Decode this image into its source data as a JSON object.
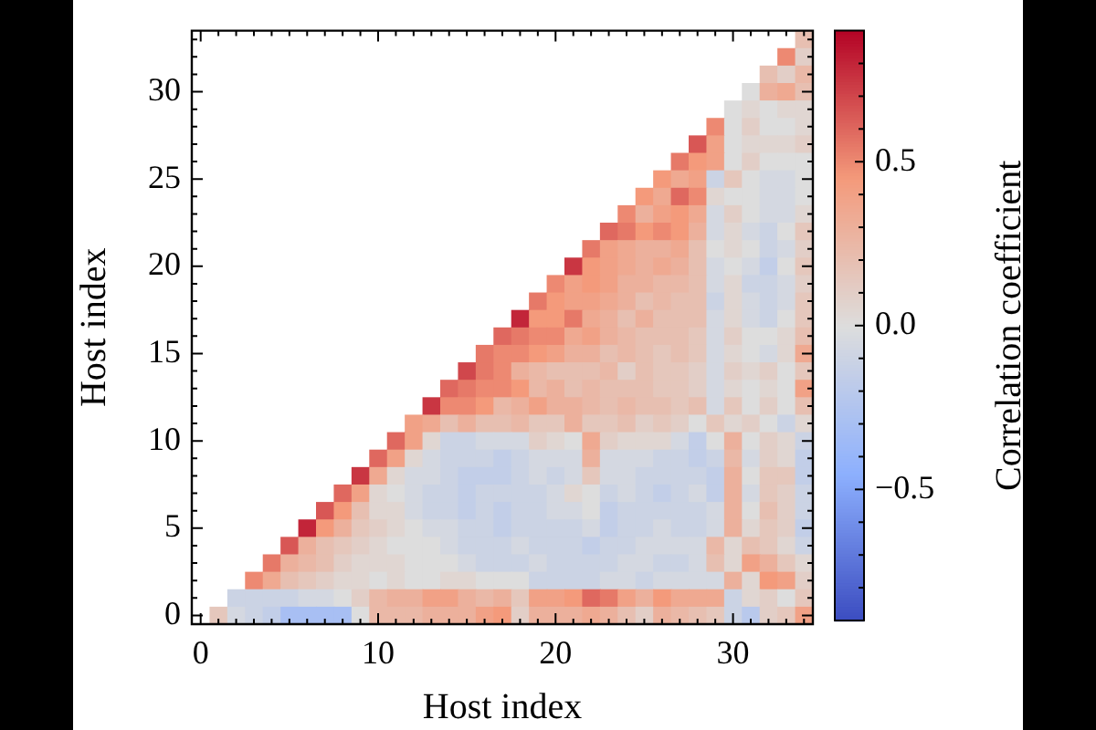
{
  "chart_data": {
    "type": "heatmap",
    "xlabel": "Host index",
    "ylabel": "Host index",
    "clabel": "Correlation coefficient",
    "categories": [
      "0",
      null,
      null,
      null,
      null,
      null,
      null,
      null,
      null,
      null,
      "10",
      null,
      null,
      null,
      null,
      null,
      null,
      null,
      null,
      null,
      "20",
      null,
      null,
      null,
      null,
      null,
      null,
      null,
      null,
      null,
      "30",
      null,
      null,
      null,
      null
    ],
    "y_categories": [
      null,
      null,
      null,
      "30",
      null,
      null,
      null,
      null,
      "25",
      null,
      null,
      null,
      null,
      "20",
      null,
      null,
      null,
      null,
      "15",
      null,
      null,
      null,
      null,
      "10",
      null,
      null,
      null,
      null,
      "5",
      null,
      null,
      null,
      null,
      "0"
    ],
    "cells": [
      [
        null,
        null,
        null,
        null,
        null,
        null,
        null,
        null,
        null,
        null,
        null,
        null,
        null,
        null,
        null,
        null,
        null,
        null,
        null,
        null,
        null,
        null,
        null,
        null,
        null,
        null,
        null,
        null,
        null,
        null,
        null,
        null,
        null,
        null,
        0.2
      ],
      [
        null,
        null,
        null,
        null,
        null,
        null,
        null,
        null,
        null,
        null,
        null,
        null,
        null,
        null,
        null,
        null,
        null,
        null,
        null,
        null,
        null,
        null,
        null,
        null,
        null,
        null,
        null,
        null,
        null,
        null,
        null,
        null,
        null,
        0.5,
        0.1
      ],
      [
        null,
        null,
        null,
        null,
        null,
        null,
        null,
        null,
        null,
        null,
        null,
        null,
        null,
        null,
        null,
        null,
        null,
        null,
        null,
        null,
        null,
        null,
        null,
        null,
        null,
        null,
        null,
        null,
        null,
        null,
        null,
        null,
        0.2,
        0.1,
        0.25
      ],
      [
        null,
        null,
        null,
        null,
        null,
        null,
        null,
        null,
        null,
        null,
        null,
        null,
        null,
        null,
        null,
        null,
        null,
        null,
        null,
        null,
        null,
        null,
        null,
        null,
        null,
        null,
        null,
        null,
        null,
        null,
        null,
        0,
        0.3,
        0.35,
        0.2
      ],
      [
        null,
        null,
        null,
        null,
        null,
        null,
        null,
        null,
        null,
        null,
        null,
        null,
        null,
        null,
        null,
        null,
        null,
        null,
        null,
        null,
        null,
        null,
        null,
        null,
        null,
        null,
        null,
        null,
        null,
        null,
        0,
        0.05,
        0,
        0.05,
        0.05
      ],
      [
        null,
        null,
        null,
        null,
        null,
        null,
        null,
        null,
        null,
        null,
        null,
        null,
        null,
        null,
        null,
        null,
        null,
        null,
        null,
        null,
        null,
        null,
        null,
        null,
        null,
        null,
        null,
        null,
        null,
        0.5,
        0,
        0.1,
        0,
        0,
        0.05
      ],
      [
        null,
        null,
        null,
        null,
        null,
        null,
        null,
        null,
        null,
        null,
        null,
        null,
        null,
        null,
        null,
        null,
        null,
        null,
        null,
        null,
        null,
        null,
        null,
        null,
        null,
        null,
        null,
        null,
        0.65,
        0.4,
        0,
        0.05,
        0.05,
        0.05,
        0.1
      ],
      [
        null,
        null,
        null,
        null,
        null,
        null,
        null,
        null,
        null,
        null,
        null,
        null,
        null,
        null,
        null,
        null,
        null,
        null,
        null,
        null,
        null,
        null,
        null,
        null,
        null,
        null,
        null,
        0.55,
        0.45,
        0.4,
        0,
        0.1,
        0,
        0,
        0
      ],
      [
        null,
        null,
        null,
        null,
        null,
        null,
        null,
        null,
        null,
        null,
        null,
        null,
        null,
        null,
        null,
        null,
        null,
        null,
        null,
        null,
        null,
        null,
        null,
        null,
        null,
        null,
        0.45,
        0.35,
        0.4,
        -0.1,
        0.15,
        0,
        -0.05,
        -0.05,
        0
      ],
      [
        null,
        null,
        null,
        null,
        null,
        null,
        null,
        null,
        null,
        null,
        null,
        null,
        null,
        null,
        null,
        null,
        null,
        null,
        null,
        null,
        null,
        null,
        null,
        null,
        null,
        0.45,
        0.35,
        0.6,
        0.5,
        0.05,
        0,
        0,
        -0.05,
        -0.05,
        0
      ],
      [
        null,
        null,
        null,
        null,
        null,
        null,
        null,
        null,
        null,
        null,
        null,
        null,
        null,
        null,
        null,
        null,
        null,
        null,
        null,
        null,
        null,
        null,
        null,
        null,
        0.5,
        0.3,
        0.4,
        0.45,
        0.35,
        -0.05,
        0.1,
        0,
        -0.05,
        -0.05,
        0.05
      ],
      [
        null,
        null,
        null,
        null,
        null,
        null,
        null,
        null,
        null,
        null,
        null,
        null,
        null,
        null,
        null,
        null,
        null,
        null,
        null,
        null,
        null,
        null,
        null,
        0.6,
        0.55,
        0.45,
        0.5,
        0.45,
        0.3,
        -0.05,
        0.05,
        -0.05,
        -0.1,
        0,
        0.15
      ],
      [
        null,
        null,
        null,
        null,
        null,
        null,
        null,
        null,
        null,
        null,
        null,
        null,
        null,
        null,
        null,
        null,
        null,
        null,
        null,
        null,
        null,
        null,
        0.55,
        0.4,
        0.35,
        0.3,
        0.3,
        0.35,
        0.2,
        0,
        0.05,
        0,
        -0.1,
        -0.05,
        0.1
      ],
      [
        null,
        null,
        null,
        null,
        null,
        null,
        null,
        null,
        null,
        null,
        null,
        null,
        null,
        null,
        null,
        null,
        null,
        null,
        null,
        null,
        null,
        0.75,
        0.45,
        0.4,
        0.35,
        0.3,
        0.35,
        0.3,
        0.2,
        -0.05,
        0,
        -0.05,
        -0.15,
        0,
        0.15
      ],
      [
        null,
        null,
        null,
        null,
        null,
        null,
        null,
        null,
        null,
        null,
        null,
        null,
        null,
        null,
        null,
        null,
        null,
        null,
        null,
        null,
        0.5,
        0.4,
        0.45,
        0.4,
        0.3,
        0.3,
        0.25,
        0.25,
        0.2,
        -0.05,
        0.05,
        -0.1,
        -0.1,
        -0.05,
        0.1
      ],
      [
        null,
        null,
        null,
        null,
        null,
        null,
        null,
        null,
        null,
        null,
        null,
        null,
        null,
        null,
        null,
        null,
        null,
        null,
        null,
        0.55,
        0.45,
        0.4,
        0.4,
        0.35,
        0.3,
        0.2,
        0.25,
        0.2,
        0.2,
        -0.1,
        0.05,
        -0.05,
        -0.1,
        -0.05,
        0.15
      ],
      [
        null,
        null,
        null,
        null,
        null,
        null,
        null,
        null,
        null,
        null,
        null,
        null,
        null,
        null,
        null,
        null,
        null,
        null,
        0.8,
        0.45,
        0.45,
        0.55,
        0.35,
        0.3,
        0.2,
        0.3,
        0.2,
        0.2,
        0.2,
        -0.05,
        0.05,
        -0.05,
        -0.1,
        0,
        0.15
      ],
      [
        null,
        null,
        null,
        null,
        null,
        null,
        null,
        null,
        null,
        null,
        null,
        null,
        null,
        null,
        null,
        null,
        null,
        0.6,
        0.55,
        0.5,
        0.5,
        0.35,
        0.4,
        0.3,
        0.25,
        0.2,
        0.2,
        0.2,
        0.15,
        -0.05,
        0.1,
        0,
        0,
        0.05,
        0.2
      ],
      [
        null,
        null,
        null,
        null,
        null,
        null,
        null,
        null,
        null,
        null,
        null,
        null,
        null,
        null,
        null,
        null,
        0.55,
        0.5,
        0.5,
        0.45,
        0.4,
        0.3,
        0.3,
        0.2,
        0.25,
        0.2,
        0.15,
        0.2,
        0.15,
        -0.05,
        0.05,
        0,
        -0.05,
        0.05,
        0.35
      ],
      [
        null,
        null,
        null,
        null,
        null,
        null,
        null,
        null,
        null,
        null,
        null,
        null,
        null,
        null,
        null,
        0.7,
        0.55,
        0.5,
        0.3,
        0.25,
        0.2,
        0.2,
        0.2,
        0.25,
        0.1,
        0.2,
        0.15,
        0.15,
        0.1,
        -0.05,
        0.1,
        0.05,
        0.1,
        0,
        0.15
      ],
      [
        null,
        null,
        null,
        null,
        null,
        null,
        null,
        null,
        null,
        null,
        null,
        null,
        null,
        null,
        0.6,
        0.55,
        0.5,
        0.5,
        0.45,
        0.25,
        0.3,
        0.2,
        0.25,
        0.2,
        0.2,
        0.2,
        0.15,
        0.15,
        0.1,
        -0.05,
        0.05,
        0,
        0.05,
        0,
        0.4
      ],
      [
        null,
        null,
        null,
        null,
        null,
        null,
        null,
        null,
        null,
        null,
        null,
        null,
        null,
        0.75,
        0.5,
        0.5,
        0.45,
        0.25,
        0.3,
        0.4,
        0.3,
        0.3,
        0.25,
        0.2,
        0.25,
        0.2,
        0.2,
        0.15,
        0.2,
        -0.05,
        0.15,
        0,
        0.1,
        0,
        0.2
      ],
      [
        null,
        null,
        null,
        null,
        null,
        null,
        null,
        null,
        null,
        null,
        null,
        null,
        0.4,
        0.35,
        0.2,
        0.3,
        0.2,
        0.2,
        0.25,
        0.15,
        0.15,
        0.3,
        0.15,
        0.15,
        0.2,
        0.1,
        0.15,
        0.1,
        0,
        0.15,
        0.05,
        0.1,
        0,
        -0.1,
        0.05
      ],
      [
        null,
        null,
        null,
        null,
        null,
        null,
        null,
        null,
        null,
        null,
        null,
        0.6,
        0.4,
        0.05,
        -0.1,
        -0.1,
        -0.05,
        -0.05,
        -0.05,
        0.1,
        0.05,
        0,
        0.35,
        0.1,
        0.05,
        0.05,
        0.05,
        -0.05,
        -0.15,
        0,
        0.3,
        0,
        0.1,
        0.05,
        -0.1
      ],
      [
        null,
        null,
        null,
        null,
        null,
        null,
        null,
        null,
        null,
        null,
        0.6,
        0.4,
        0.05,
        -0.05,
        -0.1,
        -0.1,
        -0.1,
        -0.15,
        -0.1,
        -0.05,
        -0.05,
        -0.05,
        0.3,
        -0.05,
        -0.05,
        -0.05,
        -0.1,
        -0.1,
        -0.15,
        -0.1,
        0.25,
        -0.05,
        0.1,
        0.05,
        -0.15
      ],
      [
        null,
        null,
        null,
        null,
        null,
        null,
        null,
        null,
        null,
        0.75,
        0.35,
        0.05,
        -0.05,
        -0.05,
        -0.1,
        -0.15,
        -0.15,
        -0.15,
        -0.1,
        -0.05,
        -0.1,
        -0.05,
        0.15,
        -0.05,
        -0.05,
        -0.1,
        -0.1,
        -0.1,
        -0.1,
        -0.15,
        0.3,
        0,
        0.15,
        0.15,
        -0.15
      ],
      [
        null,
        null,
        null,
        null,
        null,
        null,
        null,
        null,
        0.6,
        0.4,
        0.05,
        0,
        -0.05,
        -0.1,
        -0.1,
        -0.15,
        -0.1,
        -0.1,
        -0.1,
        -0.1,
        -0.05,
        0.05,
        0,
        -0.1,
        -0.05,
        -0.1,
        -0.15,
        -0.1,
        -0.05,
        -0.15,
        0.3,
        -0.05,
        0.15,
        0.1,
        -0.1
      ],
      [
        null,
        null,
        null,
        null,
        null,
        null,
        null,
        0.65,
        0.45,
        0.2,
        0.05,
        0.05,
        -0.05,
        -0.1,
        -0.1,
        -0.15,
        -0.1,
        -0.15,
        -0.1,
        -0.1,
        -0.05,
        -0.05,
        0,
        -0.15,
        -0.1,
        -0.1,
        -0.1,
        -0.1,
        -0.1,
        -0.05,
        0.3,
        0,
        0.2,
        0.1,
        -0.1
      ],
      [
        null,
        null,
        null,
        null,
        null,
        null,
        0.8,
        0.45,
        0.3,
        0.15,
        0.1,
        0.05,
        0,
        -0.05,
        -0.05,
        -0.1,
        -0.1,
        -0.15,
        -0.1,
        -0.1,
        -0.1,
        -0.1,
        -0.05,
        -0.15,
        -0.1,
        -0.1,
        -0.05,
        -0.1,
        -0.1,
        -0.05,
        0.3,
        0.05,
        0.15,
        0.1,
        -0.15
      ],
      [
        null,
        null,
        null,
        null,
        null,
        0.65,
        0.3,
        0.2,
        0.15,
        0.1,
        0.05,
        0,
        0,
        0,
        -0.05,
        -0.1,
        -0.1,
        -0.1,
        -0.05,
        -0.1,
        -0.1,
        -0.1,
        -0.15,
        -0.1,
        -0.1,
        -0.05,
        -0.05,
        -0.05,
        -0.05,
        0.25,
        0.05,
        0.2,
        0.15,
        0.05,
        -0.1
      ],
      [
        null,
        null,
        null,
        null,
        0.55,
        0.3,
        0.25,
        0.2,
        0.1,
        0.05,
        0.05,
        0.05,
        0,
        0,
        0,
        -0.05,
        -0.1,
        -0.1,
        -0.1,
        -0.05,
        -0.1,
        -0.1,
        -0.1,
        -0.1,
        -0.05,
        -0.05,
        -0.1,
        -0.1,
        -0.05,
        0.2,
        0.05,
        0.4,
        0.3,
        0.15,
        0.05
      ],
      [
        null,
        null,
        null,
        0.5,
        0.35,
        0.2,
        0.15,
        0.1,
        0.05,
        0.05,
        0,
        0.05,
        0,
        0,
        0.05,
        0.05,
        0,
        0,
        0,
        -0.1,
        -0.1,
        -0.1,
        -0.1,
        -0.05,
        -0.05,
        -0.1,
        -0.05,
        -0.05,
        -0.05,
        -0.05,
        0.3,
        0.05,
        0.45,
        0.4,
        0.1
      ],
      [
        null,
        null,
        -0.1,
        -0.1,
        -0.1,
        -0.1,
        -0.05,
        -0.05,
        0,
        0.1,
        0.25,
        0.3,
        0.3,
        0.4,
        0.4,
        0.3,
        0.25,
        0.3,
        0.15,
        0.4,
        0.4,
        0.45,
        0.6,
        0.55,
        0.4,
        0.3,
        0.45,
        0.35,
        0.35,
        0.35,
        -0.1,
        0.05,
        0.1,
        0,
        0.15
      ],
      [
        null,
        0.15,
        -0.05,
        -0.1,
        -0.15,
        -0.3,
        -0.3,
        -0.3,
        -0.3,
        0,
        0.25,
        0.25,
        0.25,
        0.3,
        0.3,
        0.3,
        0.4,
        0.45,
        0.1,
        0.3,
        0.3,
        0.3,
        0.35,
        0.3,
        0.2,
        0.1,
        0.3,
        0.25,
        0.2,
        0.15,
        -0.1,
        -0.2,
        0.1,
        0.15,
        0.4
      ]
    ],
    "clim": [
      -0.9,
      0.9
    ],
    "cticks": [
      {
        "value": -0.8,
        "label": null
      },
      {
        "value": -0.7,
        "label": null
      },
      {
        "value": -0.6,
        "label": null
      },
      {
        "value": -0.5,
        "label": "−0.5"
      },
      {
        "value": -0.4,
        "label": null
      },
      {
        "value": -0.3,
        "label": null
      },
      {
        "value": -0.2,
        "label": null
      },
      {
        "value": -0.1,
        "label": null
      },
      {
        "value": 0,
        "label": "0.0"
      },
      {
        "value": 0.1,
        "label": null
      },
      {
        "value": 0.2,
        "label": null
      },
      {
        "value": 0.3,
        "label": null
      },
      {
        "value": 0.4,
        "label": null
      },
      0.5,
      {
        "value": 0.6,
        "label": null
      },
      {
        "value": 0.7,
        "label": null
      },
      {
        "value": 0.8,
        "label": null
      }
    ]
  }
}
